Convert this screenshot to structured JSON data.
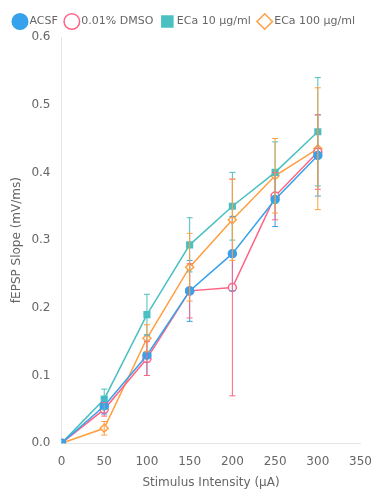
{
  "chart_data": {
    "type": "line",
    "xlabel": "Stimulus Intensity (μA)",
    "ylabel": "fEPSP Slope (mV/ms)",
    "x": [
      0,
      50,
      100,
      150,
      200,
      250,
      300
    ],
    "series": [
      {
        "name": "ACSF",
        "marker": "circle",
        "values": [
          0.0,
          0.055,
          0.13,
          0.225,
          0.28,
          0.36,
          0.425
        ],
        "error": [
          0.0,
          0.012,
          0.03,
          0.045,
          0.055,
          0.04,
          0.06
        ]
      },
      {
        "name": "0.01% DMSO",
        "marker": "open circle",
        "values": [
          0.0,
          0.05,
          0.125,
          0.225,
          0.23,
          0.365,
          0.43
        ],
        "error": [
          0.0,
          0.01,
          0.025,
          0.04,
          0.16,
          0.035,
          0.055
        ]
      },
      {
        "name": "ECa 10 μg/ml",
        "marker": "square",
        "values": [
          0.0,
          0.065,
          0.19,
          0.293,
          0.35,
          0.4,
          0.46
        ],
        "error": [
          0.0,
          0.015,
          0.03,
          0.04,
          0.05,
          0.045,
          0.08
        ]
      },
      {
        "name": "ECa 100 μg/ml",
        "marker": "open diamond",
        "values": [
          0.0,
          0.022,
          0.155,
          0.26,
          0.33,
          0.395,
          0.435
        ],
        "error": [
          0.0,
          0.01,
          0.02,
          0.05,
          0.06,
          0.055,
          0.09
        ]
      }
    ],
    "xlim": [
      0,
      350
    ],
    "xticks": [
      0,
      50,
      100,
      150,
      200,
      250,
      300,
      350
    ],
    "ylim": [
      0.0,
      0.6
    ],
    "yticks": [
      {
        "value": 0.0,
        "label": "0.0"
      },
      0.1,
      0.2,
      0.3,
      0.4,
      0.5,
      0.6
    ],
    "grid": false,
    "legend": "upper left"
  }
}
